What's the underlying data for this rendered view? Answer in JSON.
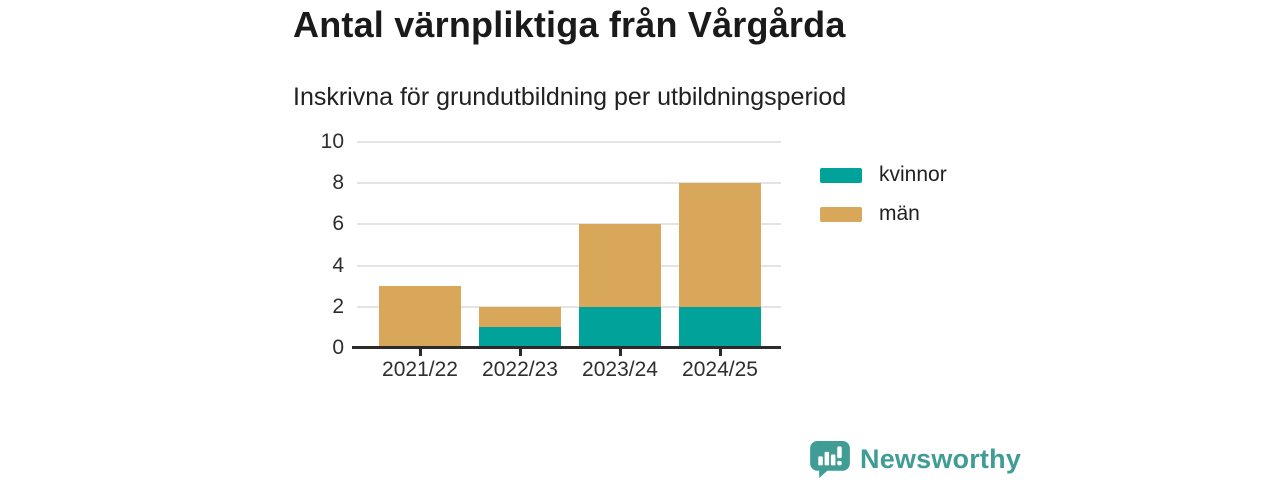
{
  "header": {
    "title": "Antal värnpliktiga från Vårgårda",
    "subtitle": "Inskrivna för grundutbildning per utbildningsperiod"
  },
  "chart_data": {
    "type": "bar",
    "stacked": true,
    "categories": [
      "2021/22",
      "2022/23",
      "2023/24",
      "2024/25"
    ],
    "series": [
      {
        "name": "kvinnor",
        "color": "#00a29a",
        "values": [
          0,
          1,
          2,
          2
        ]
      },
      {
        "name": "män",
        "color": "#d9a75a",
        "values": [
          3,
          1,
          4,
          6
        ]
      }
    ],
    "title": "Antal värnpliktiga från Vårgårda",
    "subtitle": "Inskrivna för grundutbildning per utbildningsperiod",
    "xlabel": "",
    "ylabel": "",
    "ylim": [
      0,
      10
    ],
    "yticks": [
      0,
      2,
      4,
      6,
      8,
      10
    ],
    "grid": true,
    "legend_position": "right"
  },
  "legend": {
    "items": [
      {
        "label": "kvinnor",
        "color": "#00a29a"
      },
      {
        "label": "män",
        "color": "#d9a75a"
      }
    ]
  },
  "footer": {
    "brand": "Newsworthy"
  },
  "colors": {
    "series_kvinnor": "#00a29a",
    "series_man": "#d9a75a",
    "brand": "#3f9d96",
    "axis": "#2b2b2b",
    "gridline": "#e4e4e4",
    "text": "#1a1a1a"
  }
}
